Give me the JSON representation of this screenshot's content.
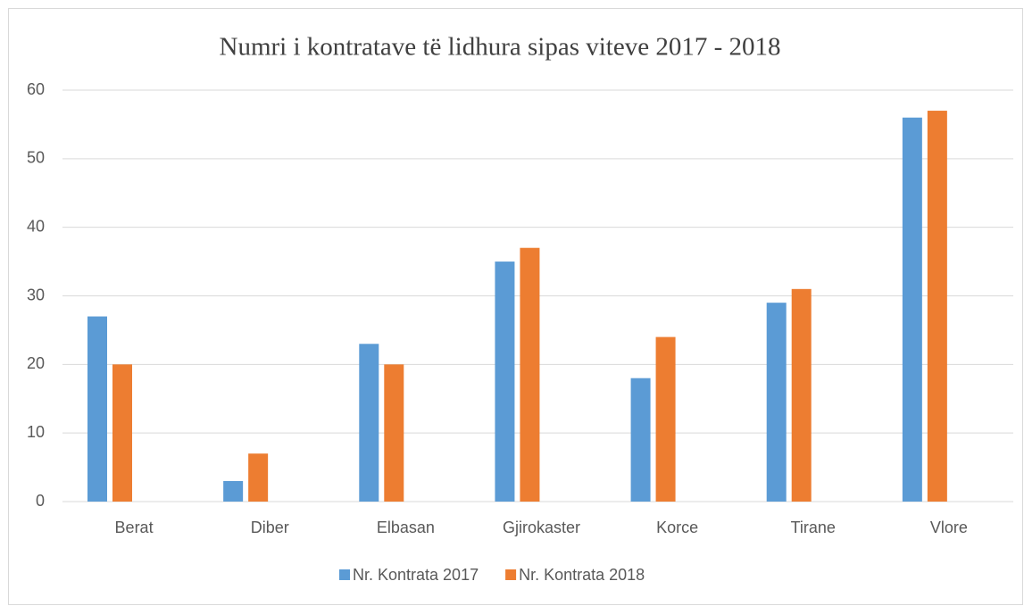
{
  "chart_data": {
    "type": "bar",
    "title": "Numri i kontratave të lidhura sipas viteve 2017 - 2018",
    "categories": [
      "Berat",
      "Diber",
      "Elbasan",
      "Gjirokaster",
      "Korce",
      "Tirane",
      "Vlore"
    ],
    "series": [
      {
        "name": "Nr. Kontrata 2017",
        "color": "#5b9bd5",
        "values": [
          27,
          3,
          23,
          35,
          18,
          29,
          56
        ]
      },
      {
        "name": "Nr. Kontrata 2018",
        "color": "#ed7d31",
        "values": [
          20,
          7,
          20,
          37,
          24,
          31,
          57
        ]
      }
    ],
    "ylim": [
      0,
      60
    ],
    "yticks": [
      0,
      10,
      20,
      30,
      40,
      50,
      60
    ],
    "grid": true,
    "legend": "bottom"
  }
}
